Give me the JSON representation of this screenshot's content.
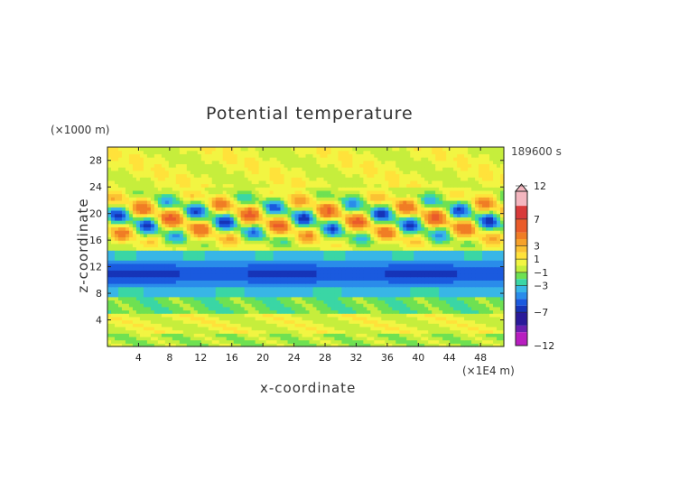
{
  "chart_data": {
    "type": "heatmap",
    "title": "Potential temperature",
    "xlabel": "x-coordinate",
    "ylabel": "z-coordinate",
    "x_unit": "(×1E4 m)",
    "y_unit": "(×1000 m)",
    "time_label": "189600 s",
    "x_ticks": [
      "4",
      "8",
      "12",
      "16",
      "20",
      "24",
      "28",
      "32",
      "36",
      "40",
      "44",
      "48"
    ],
    "x_tick_values": [
      4,
      8,
      12,
      16,
      20,
      24,
      28,
      32,
      36,
      40,
      44,
      48
    ],
    "y_ticks": [
      "4",
      "8",
      "12",
      "16",
      "20",
      "24",
      "28"
    ],
    "y_tick_values": [
      4,
      8,
      12,
      16,
      20,
      24,
      28
    ],
    "xlim": [
      0,
      51
    ],
    "ylim": [
      0,
      30
    ],
    "colorbar": {
      "labels": [
        "12",
        "7",
        "3",
        "1",
        "−1",
        "−3",
        "−7",
        "−12"
      ],
      "label_values": [
        12,
        7,
        3,
        1,
        -1,
        -3,
        -7,
        -12
      ],
      "levels": [
        {
          "value": 12,
          "color": "#f4b6bf"
        },
        {
          "value": 9,
          "color": "#d83a3a"
        },
        {
          "value": 7,
          "color": "#ea5b2a"
        },
        {
          "value": 5,
          "color": "#f07d25"
        },
        {
          "value": 4,
          "color": "#f6a12a"
        },
        {
          "value": 3,
          "color": "#fbc233"
        },
        {
          "value": 2,
          "color": "#ffe23a"
        },
        {
          "value": 1,
          "color": "#f2f542"
        },
        {
          "value": 0,
          "color": "#c6ee3c"
        },
        {
          "value": -1,
          "color": "#6ee152"
        },
        {
          "value": -2,
          "color": "#3ad6a5"
        },
        {
          "value": -3,
          "color": "#38b6e6"
        },
        {
          "value": -4,
          "color": "#2a8cea"
        },
        {
          "value": -5,
          "color": "#1a5adf"
        },
        {
          "value": -6,
          "color": "#1634b8"
        },
        {
          "value": -7,
          "color": "#2a1a9a"
        },
        {
          "value": -9,
          "color": "#6a1fb0"
        },
        {
          "value": -10,
          "color": "#b81ec0"
        },
        {
          "value": -12,
          "color": "#f03ac8"
        }
      ]
    },
    "bands": [
      {
        "z": [
          0,
          2
        ],
        "value": 0,
        "description": "near-surface green/yellow"
      },
      {
        "z": [
          2,
          5
        ],
        "value": 1,
        "description": "yellow-green"
      },
      {
        "z": [
          5,
          7.5
        ],
        "value": -1,
        "description": "green"
      },
      {
        "z": [
          7.5,
          9
        ],
        "value": -2,
        "description": "cyan"
      },
      {
        "z": [
          9,
          13
        ],
        "value": -4,
        "description": "blue with dark blue core near z=11"
      },
      {
        "z": [
          13,
          14.5
        ],
        "value": -2,
        "description": "cyan"
      },
      {
        "z": [
          14.5,
          24
        ],
        "value": 3,
        "description": "wavy positive/negative anomalies (orange/red and blue)"
      },
      {
        "z": [
          24,
          30
        ],
        "value": 1,
        "description": "upper yellow/green"
      }
    ]
  }
}
